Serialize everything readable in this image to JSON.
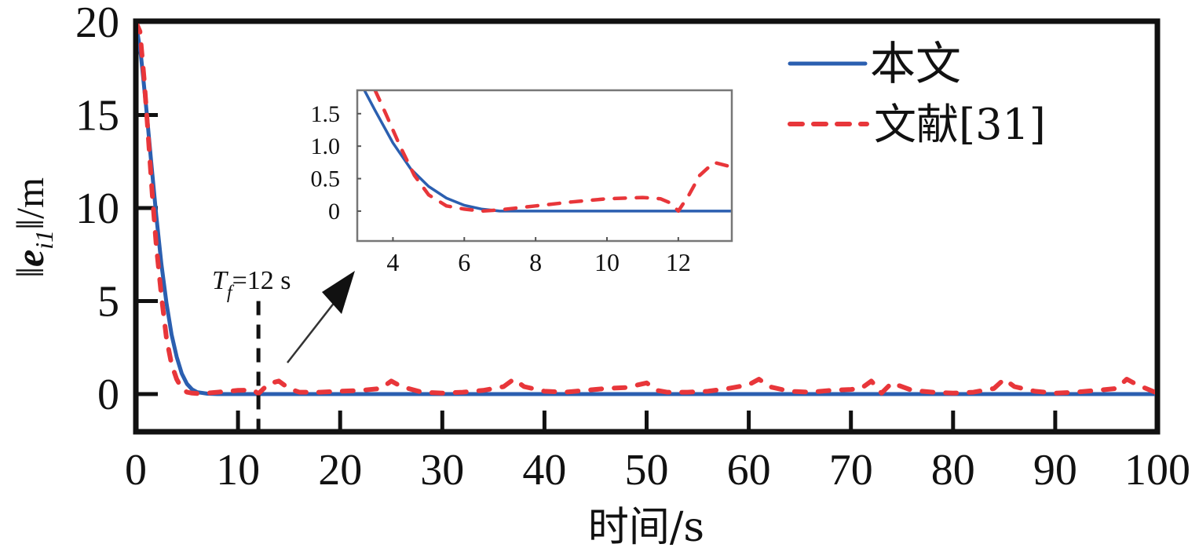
{
  "chart_data": {
    "type": "line",
    "title": "",
    "xlabel": "时间/s",
    "ylabel": "‖e_i1‖/m",
    "ylabel_parts": {
      "norm_open": "‖",
      "symbol": "e",
      "subscript": "i1",
      "norm_close": "‖",
      "unit": "/m"
    },
    "xlim": [
      0,
      100
    ],
    "ylim": [
      -2,
      20
    ],
    "xticks": [
      0,
      10,
      20,
      30,
      40,
      50,
      60,
      70,
      80,
      90,
      100
    ],
    "xtick_labels": [
      "0",
      "10",
      "20",
      "30",
      "40",
      "50",
      "60",
      "70",
      "80",
      "90",
      "100"
    ],
    "yticks": [
      0,
      5,
      10,
      15,
      20
    ],
    "ytick_labels": [
      "0",
      "5",
      "10",
      "15",
      "20"
    ],
    "grid": false,
    "legend": {
      "placement": "top-right",
      "entries": [
        "本文",
        "文献[31]"
      ]
    },
    "series": [
      {
        "name": "本文",
        "color": "#2b5fb0",
        "style": "solid",
        "x": [
          0,
          0.5,
          1,
          1.5,
          2,
          2.5,
          3,
          3.5,
          4,
          4.5,
          5,
          5.5,
          6,
          7,
          8,
          10,
          20,
          30,
          40,
          50,
          60,
          70,
          80,
          90,
          100
        ],
        "y": [
          20,
          18.2,
          15.5,
          12.5,
          9.6,
          7.0,
          4.9,
          3.2,
          2.0,
          1.1,
          0.55,
          0.25,
          0.1,
          0.02,
          0,
          0,
          0,
          0,
          0,
          0,
          0,
          0,
          0,
          0,
          0
        ]
      },
      {
        "name": "文献[31]",
        "color": "#e8363a",
        "style": "dashed",
        "x": [
          0,
          0.4,
          0.8,
          1.2,
          1.6,
          2,
          2.5,
          3,
          3.5,
          4,
          4.5,
          5,
          5.5,
          6,
          7,
          8,
          10,
          11.5,
          12,
          13,
          14,
          15,
          16,
          18,
          20,
          22,
          24,
          25,
          26,
          28,
          30,
          32,
          34,
          36,
          37,
          38,
          40,
          42,
          44,
          46,
          48,
          50,
          51,
          52,
          54,
          56,
          58,
          60,
          61,
          62,
          64,
          66,
          68,
          70,
          71,
          72,
          73,
          74,
          76,
          78,
          80,
          82,
          84,
          85,
          86,
          88,
          90,
          92,
          94,
          96,
          97,
          98,
          100
        ],
        "y": [
          20,
          19.5,
          17.0,
          14.0,
          10.8,
          8.0,
          5.3,
          3.0,
          1.6,
          0.8,
          0.3,
          0.1,
          0.05,
          0.03,
          0.05,
          0.1,
          0.2,
          0.22,
          0.02,
          0.55,
          0.7,
          0.3,
          0.1,
          0.1,
          0.15,
          0.2,
          0.3,
          0.7,
          0.4,
          0.1,
          0.05,
          0.1,
          0.2,
          0.4,
          0.8,
          0.4,
          0.15,
          0.1,
          0.2,
          0.3,
          0.35,
          0.6,
          0.2,
          0.1,
          0.1,
          0.15,
          0.3,
          0.5,
          0.8,
          0.4,
          0.15,
          0.1,
          0.2,
          0.25,
          0.3,
          0.7,
          0.05,
          0.6,
          0.2,
          0.1,
          0.05,
          0.1,
          0.3,
          0.8,
          0.4,
          0.15,
          0.05,
          0.1,
          0.2,
          0.3,
          0.8,
          0.5,
          0.05
        ]
      }
    ],
    "annotations": [
      {
        "type": "vline",
        "x": 12,
        "y_top": 5,
        "style": "dashed",
        "color": "#111111",
        "label_main": "T",
        "label_sub": "f",
        "label_rest": "=12 s"
      },
      {
        "type": "arrow",
        "description": "points from the t≈15 region to the inset",
        "color": "#111111"
      }
    ],
    "inset": {
      "xlim": [
        3,
        13.5
      ],
      "ylim": [
        -0.46,
        1.86
      ],
      "xticks": [
        4,
        6,
        8,
        10,
        12
      ],
      "xtick_labels": [
        "4",
        "6",
        "8",
        "10",
        "12"
      ],
      "yticks": [
        0,
        0.5,
        1.0,
        1.5
      ],
      "ytick_labels": [
        "0",
        "0.5",
        "1.0",
        "1.5"
      ],
      "series": [
        {
          "name": "本文",
          "color": "#2b5fb0",
          "style": "solid",
          "x": [
            3.2,
            3.5,
            4,
            4.5,
            5,
            5.5,
            6,
            6.5,
            7,
            8,
            10,
            12,
            13.5
          ],
          "y": [
            1.86,
            1.55,
            1.05,
            0.65,
            0.38,
            0.2,
            0.09,
            0.03,
            0.0,
            0.0,
            0.0,
            0.0,
            0.0
          ]
        },
        {
          "name": "文献[31]",
          "color": "#e8363a",
          "style": "dashed",
          "x": [
            3.5,
            3.8,
            4.2,
            4.6,
            5,
            5.5,
            6,
            6.5,
            7,
            7.5,
            8,
            9,
            10,
            11,
            11.5,
            11.8,
            12,
            12.3,
            12.6,
            13,
            13.5
          ],
          "y": [
            1.86,
            1.5,
            1.0,
            0.55,
            0.25,
            0.08,
            0.03,
            0.0,
            0.02,
            0.05,
            0.08,
            0.14,
            0.19,
            0.21,
            0.19,
            0.12,
            0.0,
            0.25,
            0.55,
            0.75,
            0.68
          ]
        }
      ]
    }
  }
}
